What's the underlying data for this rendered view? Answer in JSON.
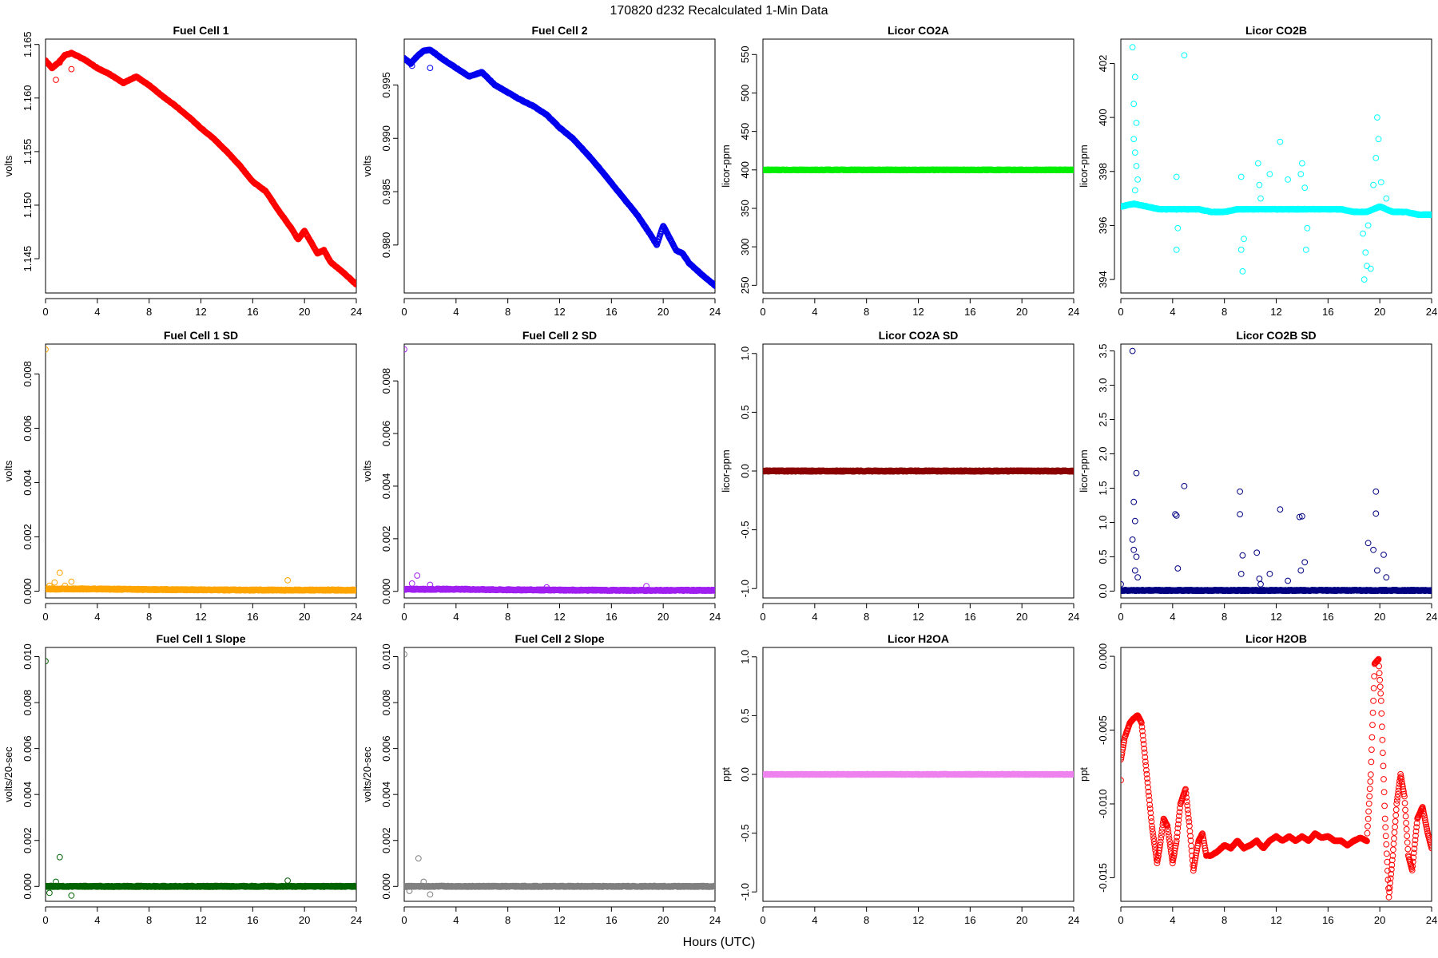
{
  "figure": {
    "suptitle": "170820    d232    Recalculated 1-Min Data",
    "xlabel": "Hours (UTC)"
  },
  "chart_data": [
    {
      "type": "scatter",
      "title": "Fuel Cell 1",
      "ylabel": "volts",
      "color": "#ff0000",
      "xlim": [
        0,
        24
      ],
      "ylim": [
        1.1418,
        1.1655
      ],
      "xticks": [
        0,
        4,
        8,
        12,
        16,
        20,
        24
      ],
      "yticks": [
        1.145,
        1.15,
        1.155,
        1.16,
        1.165
      ],
      "ytick_labels": [
        "1.145",
        "1.150",
        "1.155",
        "1.160",
        "1.165"
      ],
      "x": [
        0,
        0.5,
        1,
        1.5,
        2,
        3,
        4,
        5,
        6,
        7,
        8,
        9,
        10,
        11,
        12,
        13,
        14,
        15,
        16,
        17,
        18,
        19,
        19.5,
        20,
        21,
        21.5,
        22,
        23,
        24
      ],
      "y": [
        1.1635,
        1.1628,
        1.1633,
        1.164,
        1.1642,
        1.1636,
        1.1628,
        1.1622,
        1.1614,
        1.162,
        1.1612,
        1.1602,
        1.1593,
        1.1583,
        1.1572,
        1.1562,
        1.155,
        1.1537,
        1.1522,
        1.1513,
        1.1495,
        1.1478,
        1.1468,
        1.1476,
        1.1455,
        1.1458,
        1.1447,
        1.1437,
        1.1426
      ],
      "outliers": [
        [
          0.8,
          1.1617
        ],
        [
          2.0,
          1.1627
        ],
        [
          1.1,
          1.1633
        ]
      ]
    },
    {
      "type": "scatter",
      "title": "Fuel Cell 2",
      "ylabel": "volts",
      "color": "#0000ee",
      "xlim": [
        0,
        24
      ],
      "ylim": [
        0.9755,
        0.9993
      ],
      "xticks": [
        0,
        4,
        8,
        12,
        16,
        20,
        24
      ],
      "yticks": [
        0.98,
        0.985,
        0.99,
        0.995
      ],
      "ytick_labels": [
        "0.980",
        "0.985",
        "0.990",
        "0.995"
      ],
      "x": [
        0,
        0.5,
        1,
        1.5,
        2,
        3,
        4,
        5,
        6,
        7,
        8,
        9,
        10,
        11,
        12,
        13,
        14,
        15,
        16,
        17,
        18,
        19,
        19.5,
        20,
        21,
        21.5,
        22,
        23,
        24
      ],
      "y": [
        0.9975,
        0.997,
        0.9977,
        0.9982,
        0.9983,
        0.9974,
        0.9966,
        0.9958,
        0.9962,
        0.995,
        0.9943,
        0.9936,
        0.993,
        0.9922,
        0.991,
        0.99,
        0.9887,
        0.9873,
        0.9858,
        0.9843,
        0.9828,
        0.981,
        0.98,
        0.9818,
        0.9795,
        0.9792,
        0.9783,
        0.9772,
        0.9762
      ],
      "outliers": [
        [
          2.0,
          0.9966
        ],
        [
          0.6,
          0.9968
        ]
      ]
    },
    {
      "type": "scatter",
      "title": "Licor CO2A",
      "ylabel": "licor-ppm",
      "color": "#00ee00",
      "xlim": [
        0,
        24
      ],
      "ylim": [
        240,
        570
      ],
      "xticks": [
        0,
        4,
        8,
        12,
        16,
        20,
        24
      ],
      "yticks": [
        250,
        300,
        350,
        400,
        450,
        500,
        550
      ],
      "ytick_labels": [
        "250",
        "300",
        "350",
        "400",
        "450",
        "500",
        "550"
      ],
      "x": [
        0,
        24
      ],
      "y": [
        400,
        400
      ],
      "outliers": []
    },
    {
      "type": "scatter",
      "title": "Licor CO2B",
      "ylabel": "licor-ppm",
      "color": "#00ffff",
      "xlim": [
        0,
        24
      ],
      "ylim": [
        393.5,
        402.9
      ],
      "xticks": [
        0,
        4,
        8,
        12,
        16,
        20,
        24
      ],
      "yticks": [
        394,
        396,
        398,
        400,
        402
      ],
      "ytick_labels": [
        "394",
        "396",
        "398",
        "400",
        "402"
      ],
      "x": [
        0,
        1,
        2,
        3,
        4,
        5,
        6,
        7,
        8,
        9,
        10,
        11,
        12,
        13,
        14,
        15,
        16,
        17,
        18,
        19,
        20,
        21,
        22,
        23,
        24
      ],
      "y": [
        396.7,
        396.8,
        396.7,
        396.6,
        396.6,
        396.6,
        396.6,
        396.5,
        396.5,
        396.6,
        396.6,
        396.6,
        396.6,
        396.6,
        396.6,
        396.6,
        396.6,
        396.6,
        396.5,
        396.5,
        396.7,
        396.5,
        396.5,
        396.4,
        396.4
      ],
      "outliers": [
        [
          0.9,
          402.6
        ],
        [
          1.1,
          401.5
        ],
        [
          1.0,
          400.5
        ],
        [
          1.2,
          399.8
        ],
        [
          1.0,
          399.2
        ],
        [
          1.1,
          398.7
        ],
        [
          1.2,
          398.2
        ],
        [
          1.3,
          397.7
        ],
        [
          1.1,
          397.3
        ],
        [
          4.3,
          397.8
        ],
        [
          4.3,
          395.1
        ],
        [
          4.4,
          395.9
        ],
        [
          4.9,
          402.3
        ],
        [
          9.3,
          397.8
        ],
        [
          9.3,
          395.1
        ],
        [
          9.4,
          394.3
        ],
        [
          9.5,
          395.5
        ],
        [
          10.6,
          398.3
        ],
        [
          10.7,
          397.5
        ],
        [
          10.8,
          397.0
        ],
        [
          11.5,
          397.9
        ],
        [
          12.3,
          399.1
        ],
        [
          12.9,
          397.7
        ],
        [
          13.9,
          397.9
        ],
        [
          14.0,
          398.3
        ],
        [
          14.2,
          397.4
        ],
        [
          14.3,
          395.1
        ],
        [
          14.4,
          395.9
        ],
        [
          18.7,
          395.7
        ],
        [
          18.9,
          395.0
        ],
        [
          19.0,
          394.5
        ],
        [
          18.8,
          394.0
        ],
        [
          19.1,
          396.0
        ],
        [
          19.5,
          397.5
        ],
        [
          19.7,
          398.5
        ],
        [
          19.8,
          400.0
        ],
        [
          19.9,
          399.2
        ],
        [
          20.1,
          397.6
        ],
        [
          20.5,
          397.0
        ],
        [
          19.3,
          394.4
        ]
      ]
    },
    {
      "type": "scatter",
      "title": "Fuel Cell 1 SD",
      "ylabel": "volts",
      "color": "#ffa500",
      "xlim": [
        0,
        24
      ],
      "ylim": [
        -0.00025,
        0.0091
      ],
      "xticks": [
        0,
        4,
        8,
        12,
        16,
        20,
        24
      ],
      "yticks": [
        0,
        0.002,
        0.004,
        0.006,
        0.008
      ],
      "ytick_labels": [
        "0.000",
        "0.002",
        "0.004",
        "0.006",
        "0.008"
      ],
      "x": [
        0,
        4,
        8,
        12,
        16,
        20,
        24
      ],
      "y": [
        8e-05,
        8e-05,
        6e-05,
        5e-05,
        4e-05,
        4e-05,
        4e-05
      ],
      "outliers": [
        [
          0.0,
          0.0089
        ],
        [
          1.1,
          0.00068
        ],
        [
          0.7,
          0.00032
        ],
        [
          2.0,
          0.00035
        ],
        [
          1.5,
          0.0002
        ],
        [
          18.7,
          0.0004
        ],
        [
          0.3,
          0.0002
        ]
      ]
    },
    {
      "type": "scatter",
      "title": "Fuel Cell 2 SD",
      "ylabel": "volts",
      "color": "#a020f0",
      "xlim": [
        0,
        24
      ],
      "ylim": [
        -0.00025,
        0.0094
      ],
      "xticks": [
        0,
        4,
        8,
        12,
        16,
        20,
        24
      ],
      "yticks": [
        0,
        0.002,
        0.004,
        0.006,
        0.008
      ],
      "ytick_labels": [
        "0.000",
        "0.002",
        "0.004",
        "0.006",
        "0.008"
      ],
      "x": [
        0,
        4,
        8,
        12,
        16,
        20,
        24
      ],
      "y": [
        8e-05,
        8e-05,
        6e-05,
        5e-05,
        4e-05,
        4e-05,
        4e-05
      ],
      "outliers": [
        [
          0.0,
          0.0092
        ],
        [
          1.0,
          0.0006
        ],
        [
          0.6,
          0.0003
        ],
        [
          2.0,
          0.00025
        ],
        [
          18.7,
          0.0002
        ],
        [
          11.0,
          0.00015
        ]
      ]
    },
    {
      "type": "scatter",
      "title": "Licor CO2A SD",
      "ylabel": "licor-ppm",
      "color": "#8b0000",
      "xlim": [
        0,
        24
      ],
      "ylim": [
        -1.08,
        1.08
      ],
      "xticks": [
        0,
        4,
        8,
        12,
        16,
        20,
        24
      ],
      "yticks": [
        -1.0,
        -0.5,
        0,
        0.5,
        1.0
      ],
      "ytick_labels": [
        "-1.0",
        "-0.5",
        "0.0",
        "0.5",
        "1.0"
      ],
      "x": [
        0,
        24
      ],
      "y": [
        0,
        0
      ],
      "outliers": []
    },
    {
      "type": "scatter",
      "title": "Licor CO2B SD",
      "ylabel": "licor-ppm",
      "color": "#000080",
      "xlim": [
        0,
        24
      ],
      "ylim": [
        -0.1,
        3.6
      ],
      "xticks": [
        0,
        4,
        8,
        12,
        16,
        20,
        24
      ],
      "yticks": [
        0,
        0.5,
        1.0,
        1.5,
        2.0,
        2.5,
        3.0,
        3.5
      ],
      "ytick_labels": [
        "0.0",
        "0.5",
        "1.0",
        "1.5",
        "2.0",
        "2.5",
        "3.0",
        "3.5"
      ],
      "x": [
        0,
        24
      ],
      "y": [
        0.01,
        0.01
      ],
      "outliers": [
        [
          0.9,
          3.5
        ],
        [
          1.2,
          1.72
        ],
        [
          1.0,
          1.3
        ],
        [
          1.1,
          1.02
        ],
        [
          0.9,
          0.75
        ],
        [
          1.0,
          0.6
        ],
        [
          1.2,
          0.5
        ],
        [
          1.1,
          0.3
        ],
        [
          1.3,
          0.2
        ],
        [
          0.0,
          0.1
        ],
        [
          4.2,
          1.12
        ],
        [
          4.3,
          1.1
        ],
        [
          4.4,
          0.33
        ],
        [
          4.9,
          1.53
        ],
        [
          9.2,
          1.45
        ],
        [
          9.2,
          1.12
        ],
        [
          9.4,
          0.52
        ],
        [
          9.3,
          0.25
        ],
        [
          10.5,
          0.56
        ],
        [
          10.7,
          0.18
        ],
        [
          10.8,
          0.1
        ],
        [
          11.5,
          0.25
        ],
        [
          12.3,
          1.19
        ],
        [
          12.9,
          0.15
        ],
        [
          13.8,
          1.08
        ],
        [
          14.0,
          1.09
        ],
        [
          14.2,
          0.42
        ],
        [
          13.9,
          0.3
        ],
        [
          19.1,
          0.7
        ],
        [
          19.7,
          1.45
        ],
        [
          19.7,
          1.13
        ],
        [
          19.5,
          0.6
        ],
        [
          19.8,
          0.3
        ],
        [
          20.3,
          0.53
        ],
        [
          20.5,
          0.2
        ]
      ]
    },
    {
      "type": "scatter",
      "title": "Fuel Cell 1 Slope",
      "ylabel": "volts/20-sec",
      "color": "#006400",
      "xlim": [
        0,
        24
      ],
      "ylim": [
        -0.00065,
        0.0104
      ],
      "xticks": [
        0,
        4,
        8,
        12,
        16,
        20,
        24
      ],
      "yticks": [
        0,
        0.002,
        0.004,
        0.006,
        0.008,
        0.01
      ],
      "ytick_labels": [
        "0.000",
        "0.002",
        "0.004",
        "0.006",
        "0.008",
        "0.010"
      ],
      "x": [
        0,
        24
      ],
      "y": [
        0,
        0
      ],
      "outliers": [
        [
          0.0,
          0.0098
        ],
        [
          1.1,
          0.00127
        ],
        [
          0.3,
          -0.00028
        ],
        [
          2.0,
          -0.0004
        ],
        [
          18.7,
          0.00025
        ],
        [
          0.8,
          0.0002
        ]
      ]
    },
    {
      "type": "scatter",
      "title": "Fuel Cell 2 Slope",
      "ylabel": "volts/20-sec",
      "color": "#808080",
      "xlim": [
        0,
        24
      ],
      "ylim": [
        -0.00065,
        0.0104
      ],
      "xticks": [
        0,
        4,
        8,
        12,
        16,
        20,
        24
      ],
      "yticks": [
        0,
        0.002,
        0.004,
        0.006,
        0.008,
        0.01
      ],
      "ytick_labels": [
        "0.000",
        "0.002",
        "0.004",
        "0.006",
        "0.008",
        "0.010"
      ],
      "x": [
        0,
        24
      ],
      "y": [
        0,
        0
      ],
      "outliers": [
        [
          0.0,
          0.0101
        ],
        [
          1.1,
          0.00122
        ],
        [
          2.0,
          -0.00035
        ],
        [
          0.4,
          -0.0002
        ],
        [
          1.5,
          0.0002
        ]
      ]
    },
    {
      "type": "scatter",
      "title": "Licor H2OA",
      "ylabel": "ppt",
      "color": "#ee82ee",
      "xlim": [
        0,
        24
      ],
      "ylim": [
        -1.08,
        1.08
      ],
      "xticks": [
        0,
        4,
        8,
        12,
        16,
        20,
        24
      ],
      "yticks": [
        -1.0,
        -0.5,
        0,
        0.5,
        1.0
      ],
      "ytick_labels": [
        "-1.0",
        "-0.5",
        "0.0",
        "0.5",
        "1.0"
      ],
      "x": [
        0,
        24
      ],
      "y": [
        0,
        0
      ],
      "outliers": []
    },
    {
      "type": "scatter",
      "title": "Licor H2OB",
      "ylabel": "ppt",
      "color": "#ff0000",
      "xlim": [
        0,
        24
      ],
      "ylim": [
        -0.0166,
        0.0006
      ],
      "xticks": [
        0,
        4,
        8,
        12,
        16,
        20,
        24
      ],
      "yticks": [
        -0.015,
        -0.01,
        -0.005,
        0
      ],
      "ytick_labels": [
        "-0.015",
        "-0.010",
        "-0.005",
        "0.000"
      ],
      "x": [
        0,
        0.3,
        0.7,
        1.0,
        1.3,
        1.6,
        2.0,
        2.4,
        2.8,
        3.0,
        3.3,
        3.6,
        4.0,
        4.3,
        4.6,
        5.0,
        5.3,
        5.6,
        6.0,
        6.3,
        6.6,
        7.0,
        7.5,
        8.0,
        8.5,
        9.0,
        9.5,
        10.0,
        10.5,
        11.0,
        11.5,
        12.0,
        12.5,
        13.0,
        13.5,
        14.0,
        14.5,
        15.0,
        15.5,
        16.0,
        16.5,
        17.0,
        17.5,
        18.0,
        18.5,
        19.0,
        19.3,
        19.6,
        19.9,
        20.1,
        20.4,
        20.7,
        21.0,
        21.3,
        21.6,
        21.9,
        22.2,
        22.5,
        22.9,
        23.3,
        23.7,
        24.0
      ],
      "y": [
        -0.007,
        -0.0055,
        -0.0045,
        -0.0042,
        -0.004,
        -0.0045,
        -0.008,
        -0.0115,
        -0.014,
        -0.013,
        -0.011,
        -0.0115,
        -0.014,
        -0.0125,
        -0.01,
        -0.009,
        -0.0115,
        -0.0145,
        -0.0125,
        -0.012,
        -0.0135,
        -0.0135,
        -0.0132,
        -0.0128,
        -0.013,
        -0.0125,
        -0.013,
        -0.0128,
        -0.0125,
        -0.013,
        -0.0125,
        -0.0122,
        -0.0125,
        -0.0122,
        -0.0125,
        -0.0122,
        -0.0125,
        -0.012,
        -0.0123,
        -0.0122,
        -0.0125,
        -0.0125,
        -0.0128,
        -0.0125,
        -0.0123,
        -0.0125,
        -0.008,
        -0.0005,
        -0.0002,
        -0.003,
        -0.011,
        -0.0163,
        -0.0135,
        -0.01,
        -0.008,
        -0.0095,
        -0.0135,
        -0.0145,
        -0.011,
        -0.0102,
        -0.012,
        -0.013
      ],
      "outliers": [
        [
          0.0,
          -0.0084
        ]
      ]
    }
  ]
}
